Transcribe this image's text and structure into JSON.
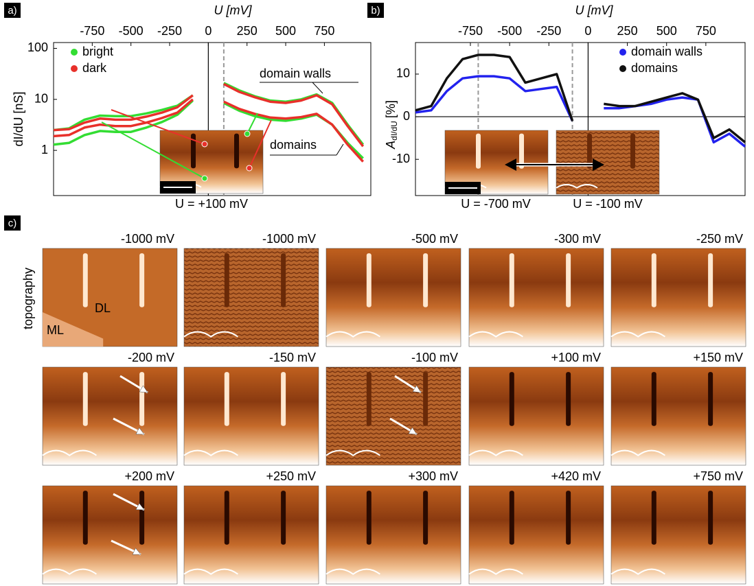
{
  "chart_data": [
    {
      "type": "line",
      "panel_label": "a)",
      "xlabel": "U [mV]",
      "ylabel": "dI/dU [nS]",
      "xlim": [
        -1000,
        1050
      ],
      "xticks": [
        -750,
        -500,
        -250,
        0,
        250,
        500,
        750
      ],
      "ylim": [
        0.13,
        130
      ],
      "yticks": [
        1,
        10,
        100
      ],
      "log_y": true,
      "legend": "top-left",
      "x": [
        -1000,
        -900,
        -800,
        -700,
        -600,
        -500,
        -400,
        -300,
        -200,
        -100,
        0,
        100,
        200,
        300,
        400,
        500,
        600,
        700,
        800,
        900,
        1000
      ],
      "series": [
        {
          "name": "bright",
          "color": "#33dd33",
          "curves": [
            [
              2.5,
              2.7,
              4.0,
              4.8,
              4.7,
              4.7,
              5.3,
              6.2,
              7.5,
              12,
              null,
              21,
              15,
              11.5,
              9.5,
              9,
              10,
              12.5,
              8.5,
              3.2,
              1.3
            ],
            [
              1.3,
              1.4,
              2.0,
              2.4,
              2.3,
              2.3,
              2.8,
              3.6,
              5,
              9.5,
              null,
              8.5,
              6,
              4.7,
              4.0,
              3.8,
              4.2,
              5,
              3.2,
              1.4,
              0.7
            ]
          ]
        },
        {
          "name": "dark",
          "color": "#e8302a",
          "curves": [
            [
              2.5,
              2.6,
              3.5,
              4.2,
              4.0,
              4.0,
              4.6,
              5.5,
              7,
              12,
              null,
              20,
              14,
              11,
              9,
              8.5,
              9.5,
              12,
              8,
              3,
              1.2
            ],
            [
              1.9,
              2.0,
              2.8,
              3.2,
              3.0,
              3.0,
              3.5,
              4.3,
              5.5,
              10,
              null,
              9,
              6.5,
              5.2,
              4.4,
              4.2,
              4.5,
              5.2,
              3.2,
              1.3,
              0.6
            ]
          ]
        }
      ],
      "curve_labels": [
        "domain walls",
        "domains"
      ],
      "markers": [
        100
      ],
      "inset_label": "U = +100 mV"
    },
    {
      "type": "line",
      "panel_label": "b)",
      "xlabel": "U [mV]",
      "ylabel": "A",
      "ylabel_sub": "dI/dU",
      "ylabel_unit": "[%]",
      "xlim": [
        -1100,
        1000
      ],
      "xticks": [
        -750,
        -500,
        -250,
        0,
        250,
        500,
        750
      ],
      "ylim": [
        -18.5,
        17.4
      ],
      "yticks": [
        -10,
        0,
        10
      ],
      "legend": "top-right",
      "x": [
        -1100,
        -1000,
        -900,
        -800,
        -700,
        -600,
        -500,
        -400,
        -300,
        -200,
        -100,
        0,
        100,
        200,
        300,
        400,
        500,
        600,
        700,
        800,
        900,
        1000
      ],
      "series": [
        {
          "name": "domain walls",
          "color": "#2222ee",
          "values": [
            1,
            1.5,
            6,
            9,
            9.5,
            9.5,
            9,
            6,
            6.5,
            7,
            -1,
            null,
            2,
            2,
            2.5,
            3,
            4,
            4.5,
            4,
            -6,
            -4,
            -7
          ]
        },
        {
          "name": "domains",
          "color": "#111111",
          "values": [
            1.5,
            2.5,
            9,
            13.5,
            14.5,
            14.5,
            14,
            8,
            9,
            10,
            -1,
            null,
            3,
            2.5,
            2.5,
            3.5,
            4.5,
            5.5,
            4,
            -5,
            -3,
            -6
          ]
        }
      ],
      "markers": [
        -700,
        -100
      ],
      "inset_labels": [
        "U = -700 mV",
        "U = -100 mV"
      ]
    }
  ],
  "panel_c": {
    "label": "c)",
    "row_label": "topography",
    "image_annotations": [
      "DL",
      "ML"
    ],
    "images": [
      "-1000 mV",
      "-1000 mV",
      "-500 mV",
      "-300 mV",
      "-250 mV",
      "-200 mV",
      "-150 mV",
      "-100 mV",
      "+100 mV",
      "+150 mV",
      "+200 mV",
      "+250 mV",
      "+300 mV",
      "+420 mV",
      "+750 mV"
    ]
  }
}
